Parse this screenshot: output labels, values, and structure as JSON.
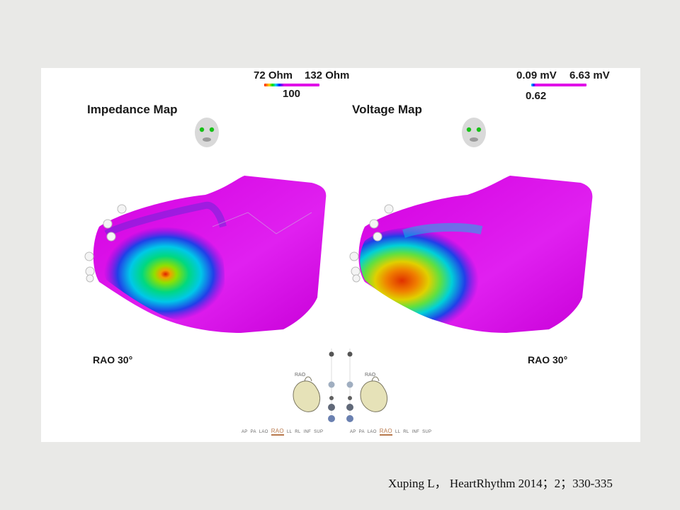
{
  "impedance": {
    "title": "Impedance Map",
    "scale_min": "72 Ohm",
    "scale_max": "132 Ohm",
    "scale_mid": "100",
    "view_label": "RAO 30°"
  },
  "voltage": {
    "title": "Voltage Map",
    "scale_min": "0.09 mV",
    "scale_max": "6.63 mV",
    "scale_mid": "0.62",
    "view_label": "RAO 30°"
  },
  "orientation": {
    "heart_label": "RAO",
    "views": [
      "AP",
      "PA",
      "LAO",
      "RAO",
      "LL",
      "RL",
      "INF",
      "SUP"
    ],
    "active_view": "RAO"
  },
  "colors": {
    "magenta": "#e000e8",
    "accent_tab": "#b8794c"
  },
  "citation": "Xuping L， HeartRhythm 2014；2；330-335"
}
